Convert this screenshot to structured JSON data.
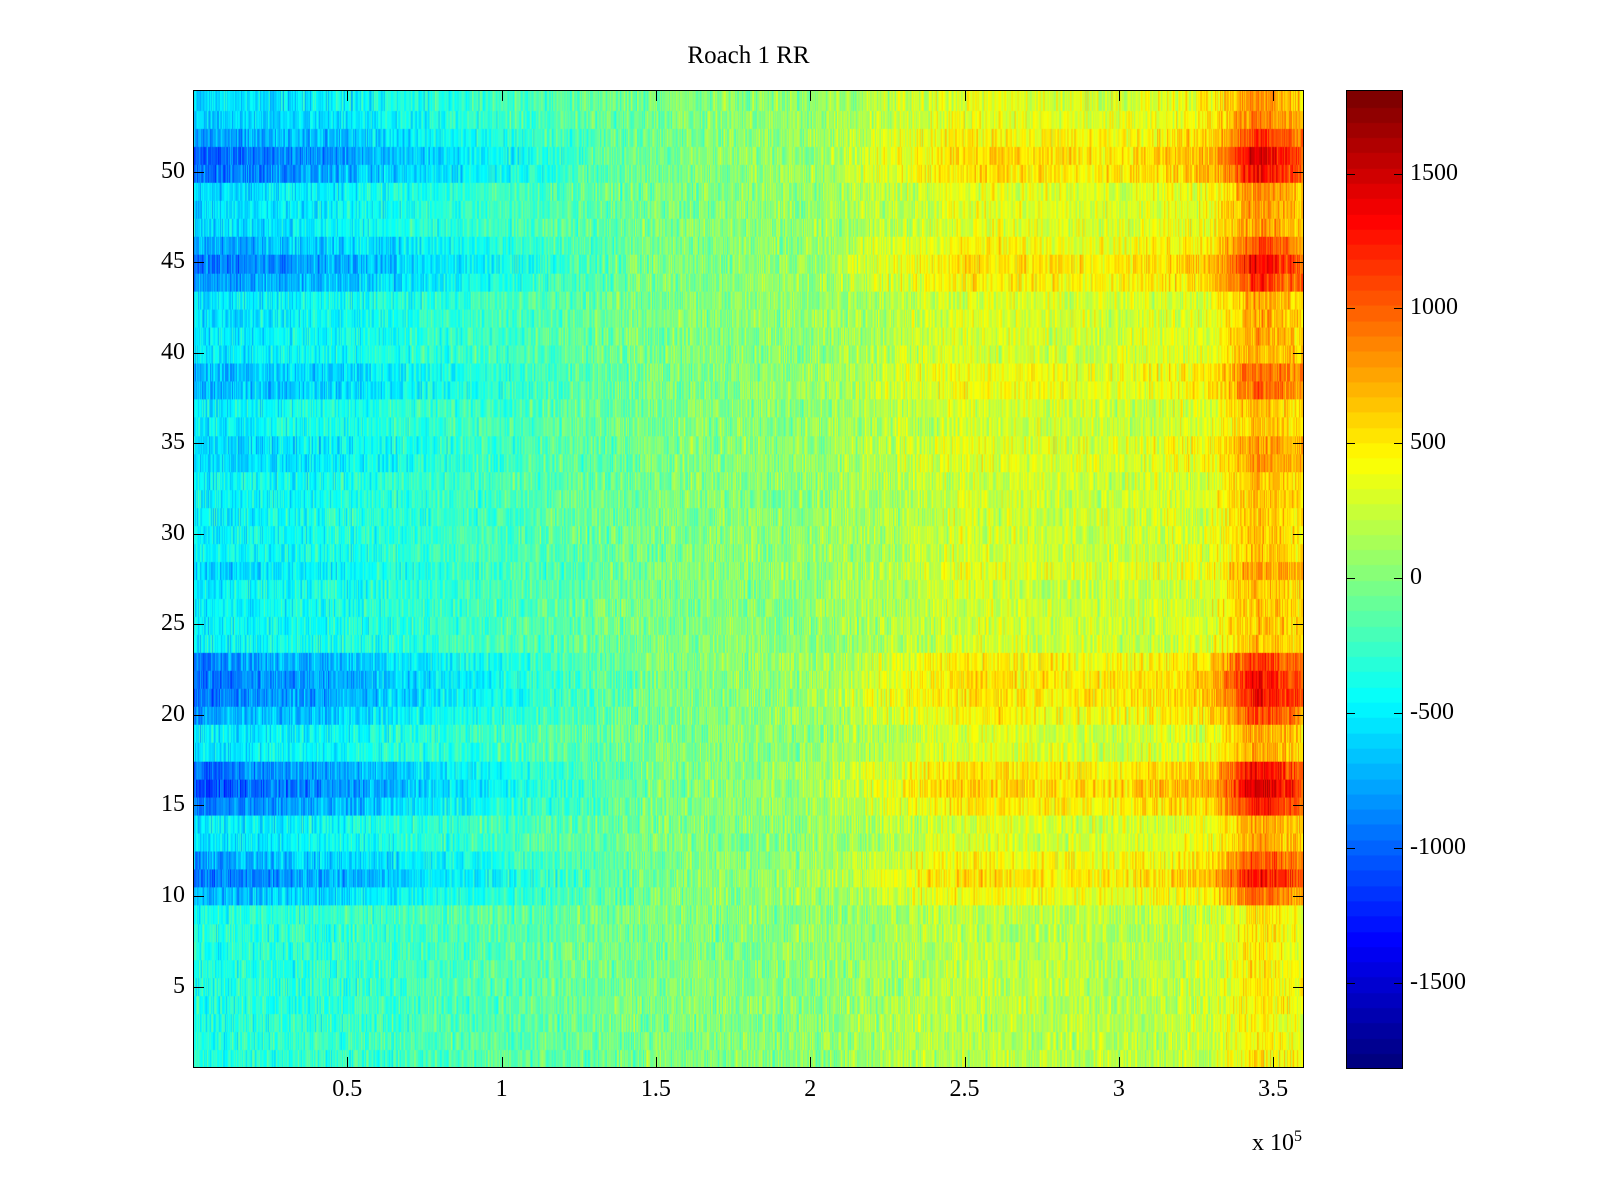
{
  "chart_data": {
    "type": "heatmap",
    "title": "Roach 1 RR",
    "xlabel": "",
    "ylabel": "",
    "x_multiplier_label": "x 10",
    "x_multiplier_exponent": "5",
    "xlim": [
      0,
      3.6
    ],
    "ylim": [
      0.5,
      54.5
    ],
    "clim": [
      -1820,
      1810
    ],
    "colormap": "jet",
    "x_ticks": [
      0.5,
      1,
      1.5,
      2,
      2.5,
      3,
      3.5
    ],
    "x_tick_labels": [
      "0.5",
      "1",
      "1.5",
      "2",
      "2.5",
      "3",
      "3.5"
    ],
    "y_ticks": [
      5,
      10,
      15,
      20,
      25,
      30,
      35,
      40,
      45,
      50
    ],
    "y_tick_labels": [
      "5",
      "10",
      "15",
      "20",
      "25",
      "30",
      "35",
      "40",
      "45",
      "50"
    ],
    "colorbar_ticks": [
      -1500,
      -1000,
      -500,
      0,
      500,
      1000,
      1500
    ],
    "colorbar_tick_labels": [
      "-1500",
      "-1000",
      "-500",
      "0",
      "500",
      "1000",
      "1500"
    ],
    "rows": 54,
    "column_trend": {
      "x": [
        0,
        0.5,
        1,
        1.5,
        2,
        2.5,
        3,
        3.3,
        3.45,
        3.6
      ],
      "value": [
        -600,
        -450,
        -250,
        -20,
        60,
        350,
        300,
        400,
        850,
        650
      ]
    },
    "row_contrast": [
      0.6,
      0.6,
      0.6,
      0.6,
      0.6,
      0.6,
      0.6,
      0.6,
      0.6,
      1.2,
      1.6,
      1.3,
      0.9,
      0.9,
      1.5,
      1.8,
      1.6,
      0.9,
      0.9,
      1.3,
      1.6,
      1.6,
      1.4,
      0.8,
      0.8,
      0.8,
      0.8,
      1.0,
      0.8,
      0.8,
      0.8,
      0.8,
      0.8,
      1.0,
      1.0,
      0.8,
      0.8,
      1.2,
      1.2,
      0.9,
      0.9,
      0.9,
      0.9,
      1.4,
      1.6,
      1.3,
      1.0,
      1.0,
      1.0,
      1.6,
      1.7,
      1.4,
      1.1,
      1.0
    ],
    "noise_amplitude": 320
  }
}
